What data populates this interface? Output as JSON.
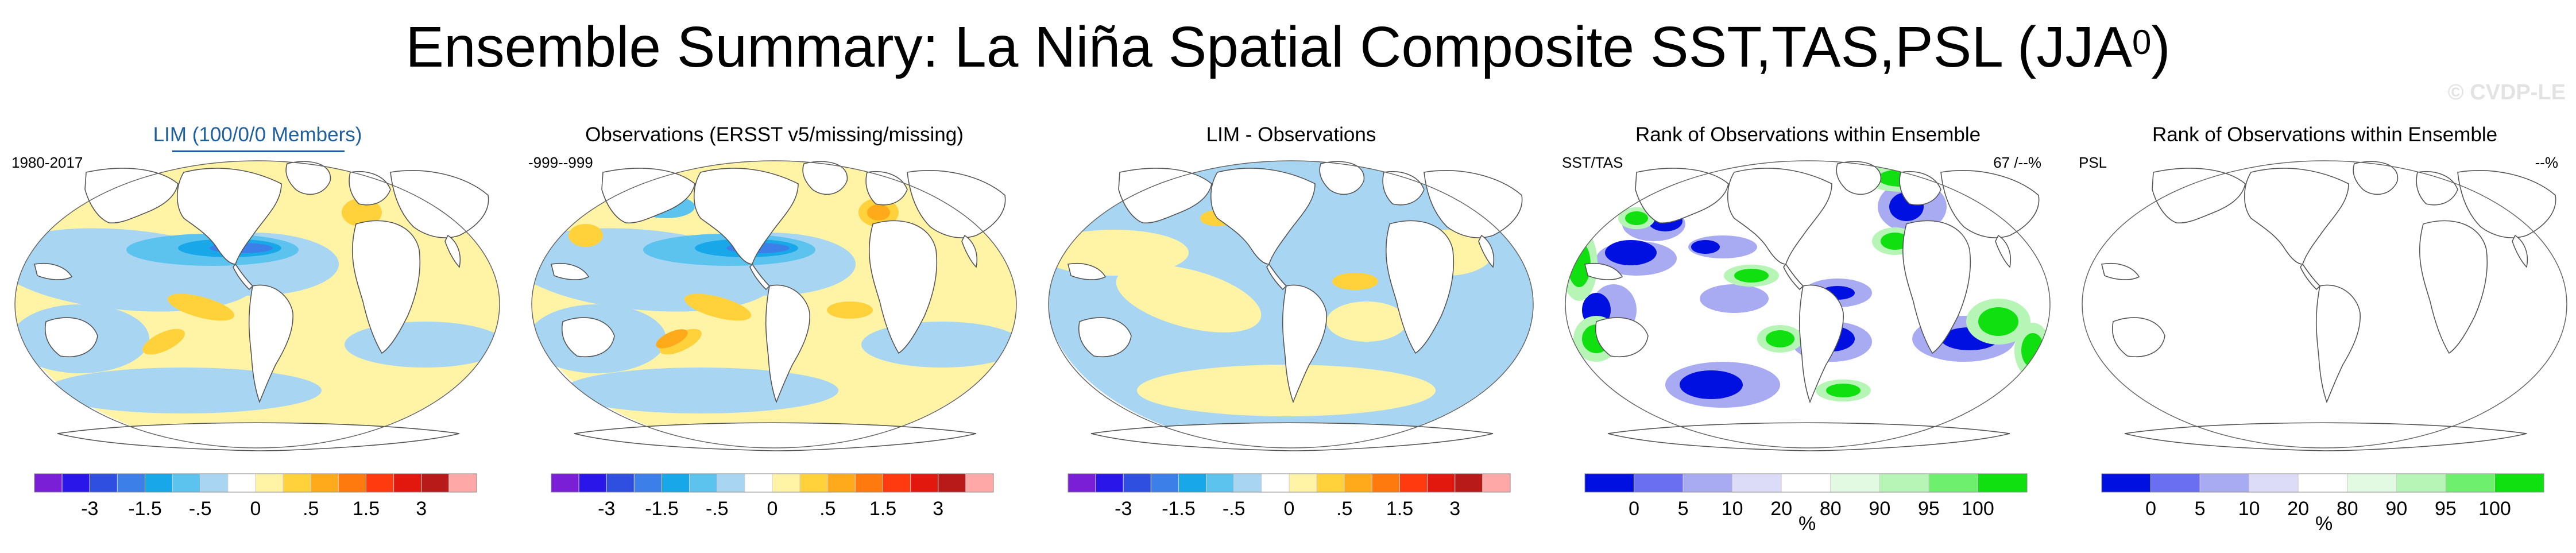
{
  "figure": {
    "title": "Ensemble Summary: La Niña Spatial Composite SST,TAS,PSL (JJA",
    "title_superscript": "0",
    "title_close": ")",
    "watermark": "© CVDP-LE"
  },
  "colors": {
    "diverging": [
      "#7a1fd6",
      "#2a16e8",
      "#2f4fe0",
      "#3c7fe8",
      "#18a8ea",
      "#5cc3ef",
      "#a8d6f2",
      "#ffffff",
      "#fff3a6",
      "#ffd23c",
      "#ffaa1a",
      "#ff7a0e",
      "#ff3a0e",
      "#e2180f",
      "#b81a1a",
      "#ffa8a8"
    ],
    "rank": [
      "#0010e0",
      "#6a6ef0",
      "#a8aaf2",
      "#dcdcf8",
      "#ffffff",
      "#e2fae2",
      "#b6f5b6",
      "#6ef06e",
      "#10e010"
    ]
  },
  "chart_data": [
    {
      "type": "heatmap",
      "title": "LIM (100/0/0 Members)",
      "label_left": "1980-2017",
      "label_right": "",
      "colorbar_ticks": [
        "-3",
        "-1.5",
        "-.5",
        "0",
        ".5",
        "1.5",
        "3"
      ],
      "colorbar_unit": ""
    },
    {
      "type": "heatmap",
      "title": "Observations (ERSST v5/missing/missing)",
      "label_left": "-999--999",
      "label_right": "",
      "colorbar_ticks": [
        "-3",
        "-1.5",
        "-.5",
        "0",
        ".5",
        "1.5",
        "3"
      ],
      "colorbar_unit": ""
    },
    {
      "type": "heatmap",
      "title": "LIM - Observations",
      "label_left": "",
      "label_right": "",
      "colorbar_ticks": [
        "-3",
        "-1.5",
        "-.5",
        "0",
        ".5",
        "1.5",
        "3"
      ],
      "colorbar_unit": ""
    },
    {
      "type": "heatmap",
      "title": "Rank of Observations within Ensemble",
      "label_left": "SST/TAS",
      "label_right": "67 /--%",
      "colorbar_ticks": [
        "0",
        "5",
        "10",
        "20",
        "80",
        "90",
        "95",
        "100"
      ],
      "colorbar_unit": "%"
    },
    {
      "type": "heatmap",
      "title": "Rank of Observations within Ensemble",
      "label_left": "PSL",
      "label_right": "--%",
      "colorbar_ticks": [
        "0",
        "5",
        "10",
        "20",
        "80",
        "90",
        "95",
        "100"
      ],
      "colorbar_unit": "%"
    }
  ]
}
